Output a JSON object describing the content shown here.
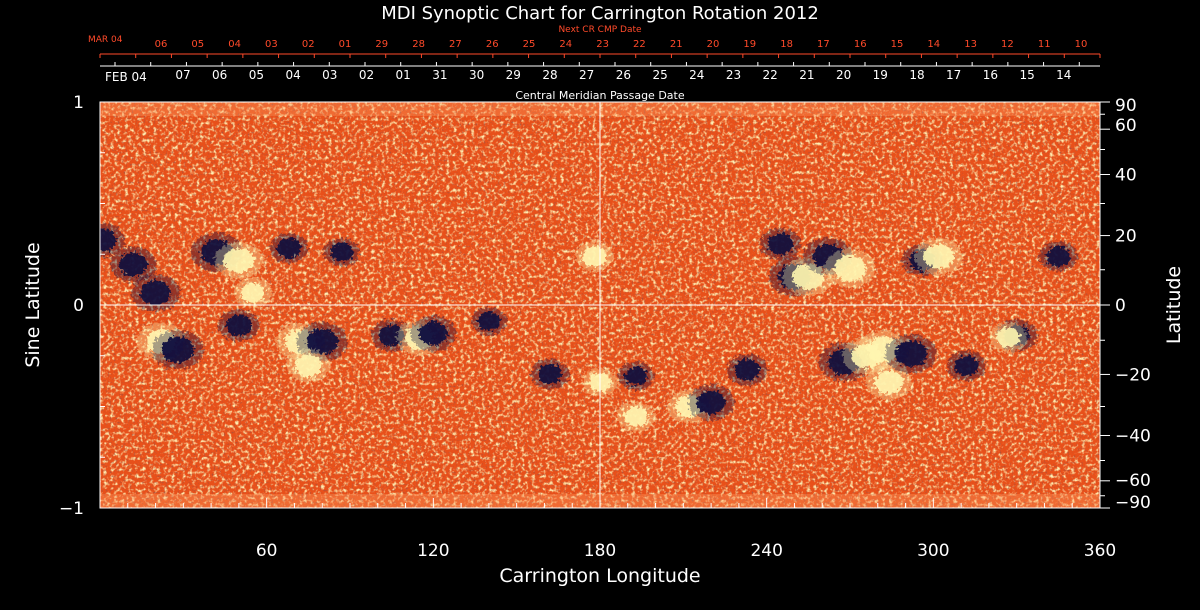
{
  "chart_data": {
    "type": "heatmap",
    "title": "MDI Synoptic Chart for Carrington Rotation 2012",
    "xlabel": "Carrington Longitude",
    "ylabel_left": "Sine Latitude",
    "ylabel_right": "Latitude",
    "xlim": [
      0,
      360
    ],
    "ylim": [
      -1,
      1
    ],
    "x_ticks": [
      "60",
      "120",
      "180",
      "240",
      "300",
      "360"
    ],
    "y_ticks_left": [
      {
        "value": 1,
        "label": "1"
      },
      {
        "value": 0,
        "label": "0"
      },
      {
        "value": -1,
        "label": "−1"
      }
    ],
    "y_ticks_right": [
      "90",
      "60",
      "40",
      "20",
      "0",
      "−20",
      "−40",
      "−60",
      "−90"
    ],
    "top_axis_red_title": "Next CR CMP Date",
    "top_axis_red_start": "MAR 04",
    "top_axis_red_labels": [
      "06",
      "05",
      "04",
      "03",
      "02",
      "01",
      "29",
      "28",
      "27",
      "26",
      "25",
      "24",
      "23",
      "22",
      "21",
      "20",
      "19",
      "18",
      "17",
      "16",
      "15",
      "14",
      "13",
      "12",
      "11",
      "10"
    ],
    "top_axis_white_title": "Central Meridian Passage Date",
    "top_axis_white_start": "FEB 04",
    "top_axis_white_labels": [
      "07",
      "06",
      "05",
      "04",
      "03",
      "02",
      "01",
      "31",
      "30",
      "29",
      "28",
      "27",
      "26",
      "25",
      "24",
      "23",
      "22",
      "21",
      "20",
      "19",
      "18",
      "17",
      "16",
      "15",
      "14"
    ],
    "colors": {
      "background_field": "#e8501a",
      "positive_polarity": "#fff6b0",
      "negative_polarity": "#0a0a3c",
      "next_cr_axis": "#ff4a2a"
    },
    "active_regions": [
      {
        "lon": 1,
        "sinlat": 0.32,
        "polarity": "negative",
        "strength": 0.7
      },
      {
        "lon": 12,
        "sinlat": 0.2,
        "polarity": "negative",
        "strength": 0.8
      },
      {
        "lon": 20,
        "sinlat": 0.06,
        "polarity": "negative",
        "strength": 0.9
      },
      {
        "lon": 22,
        "sinlat": -0.18,
        "polarity": "positive",
        "strength": 0.9
      },
      {
        "lon": 28,
        "sinlat": -0.22,
        "polarity": "negative",
        "strength": 1.0
      },
      {
        "lon": 42,
        "sinlat": 0.26,
        "polarity": "negative",
        "strength": 1.0
      },
      {
        "lon": 50,
        "sinlat": 0.22,
        "polarity": "positive",
        "strength": 0.9
      },
      {
        "lon": 50,
        "sinlat": -0.1,
        "polarity": "negative",
        "strength": 0.6
      },
      {
        "lon": 55,
        "sinlat": 0.06,
        "polarity": "positive",
        "strength": 0.5
      },
      {
        "lon": 68,
        "sinlat": 0.28,
        "polarity": "negative",
        "strength": 0.5
      },
      {
        "lon": 72,
        "sinlat": -0.18,
        "polarity": "positive",
        "strength": 0.9
      },
      {
        "lon": 80,
        "sinlat": -0.18,
        "polarity": "negative",
        "strength": 1.0
      },
      {
        "lon": 75,
        "sinlat": -0.3,
        "polarity": "positive",
        "strength": 0.7
      },
      {
        "lon": 87,
        "sinlat": 0.26,
        "polarity": "negative",
        "strength": 0.4
      },
      {
        "lon": 105,
        "sinlat": -0.15,
        "polarity": "negative",
        "strength": 0.6
      },
      {
        "lon": 115,
        "sinlat": -0.16,
        "polarity": "positive",
        "strength": 0.8
      },
      {
        "lon": 120,
        "sinlat": -0.14,
        "polarity": "negative",
        "strength": 0.8
      },
      {
        "lon": 140,
        "sinlat": -0.08,
        "polarity": "negative",
        "strength": 0.4
      },
      {
        "lon": 162,
        "sinlat": -0.34,
        "polarity": "negative",
        "strength": 0.5
      },
      {
        "lon": 178,
        "sinlat": 0.24,
        "polarity": "positive",
        "strength": 0.5
      },
      {
        "lon": 180,
        "sinlat": -0.38,
        "polarity": "positive",
        "strength": 0.4
      },
      {
        "lon": 193,
        "sinlat": -0.35,
        "polarity": "negative",
        "strength": 0.4
      },
      {
        "lon": 193,
        "sinlat": -0.55,
        "polarity": "positive",
        "strength": 0.5
      },
      {
        "lon": 212,
        "sinlat": -0.5,
        "polarity": "positive",
        "strength": 0.7
      },
      {
        "lon": 220,
        "sinlat": -0.48,
        "polarity": "negative",
        "strength": 0.8
      },
      {
        "lon": 233,
        "sinlat": -0.32,
        "polarity": "negative",
        "strength": 0.6
      },
      {
        "lon": 245,
        "sinlat": 0.3,
        "polarity": "negative",
        "strength": 0.6
      },
      {
        "lon": 250,
        "sinlat": 0.14,
        "polarity": "negative",
        "strength": 1.0
      },
      {
        "lon": 255,
        "sinlat": 0.14,
        "polarity": "positive",
        "strength": 1.0
      },
      {
        "lon": 262,
        "sinlat": 0.24,
        "polarity": "negative",
        "strength": 0.9
      },
      {
        "lon": 270,
        "sinlat": 0.18,
        "polarity": "positive",
        "strength": 1.0
      },
      {
        "lon": 268,
        "sinlat": -0.28,
        "polarity": "negative",
        "strength": 1.0
      },
      {
        "lon": 276,
        "sinlat": -0.25,
        "polarity": "positive",
        "strength": 0.9
      },
      {
        "lon": 282,
        "sinlat": -0.22,
        "polarity": "positive",
        "strength": 1.0
      },
      {
        "lon": 284,
        "sinlat": -0.38,
        "polarity": "positive",
        "strength": 0.8
      },
      {
        "lon": 292,
        "sinlat": -0.24,
        "polarity": "negative",
        "strength": 1.0
      },
      {
        "lon": 296,
        "sinlat": 0.22,
        "polarity": "negative",
        "strength": 0.6
      },
      {
        "lon": 302,
        "sinlat": 0.24,
        "polarity": "positive",
        "strength": 0.9
      },
      {
        "lon": 312,
        "sinlat": -0.3,
        "polarity": "negative",
        "strength": 0.5
      },
      {
        "lon": 330,
        "sinlat": -0.15,
        "polarity": "negative",
        "strength": 0.6
      },
      {
        "lon": 327,
        "sinlat": -0.16,
        "polarity": "positive",
        "strength": 0.5
      },
      {
        "lon": 345,
        "sinlat": 0.24,
        "polarity": "negative",
        "strength": 0.5
      }
    ]
  }
}
